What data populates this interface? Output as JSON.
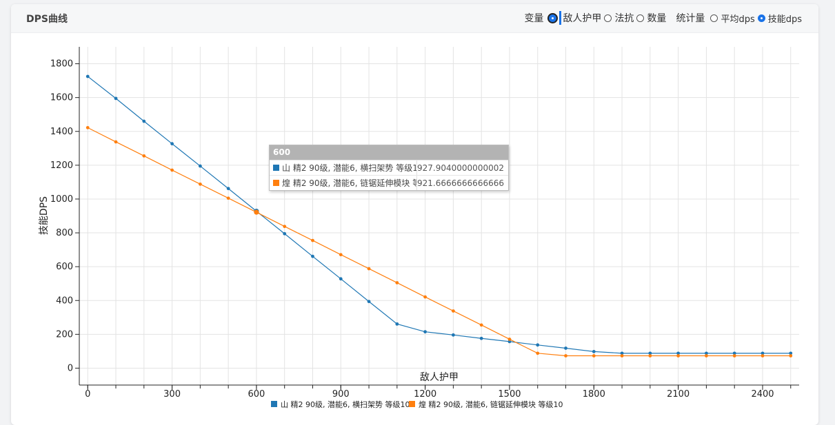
{
  "card": {
    "title": "DPS曲线"
  },
  "controls": {
    "variable_label": "变量",
    "variable_options": [
      "敌人护甲",
      "法抗",
      "数量"
    ],
    "variable_selected": "敌人护甲",
    "stat_label": "统计量",
    "stat_options": [
      "平均dps",
      "技能dps"
    ],
    "stat_selected": "技能dps"
  },
  "tooltip": {
    "title": "600",
    "rows": [
      {
        "name": "山 精2 90级, 潜能6, 横扫架势 等级10",
        "value": "927.9040000000002",
        "color": "#1f77b4"
      },
      {
        "name": "煌 精2 90级, 潜能6, 链锯延伸模块 等级10",
        "value": "921.6666666666666",
        "color": "#ff7f0e"
      }
    ]
  },
  "chart_data": {
    "type": "line",
    "xlabel": "敌人护甲",
    "ylabel": "技能DPS",
    "xlim": [
      -30,
      2530
    ],
    "ylim": [
      -100,
      1900
    ],
    "xticks": [
      0,
      300,
      600,
      900,
      1200,
      1500,
      1800,
      2100,
      2400
    ],
    "yticks": [
      0,
      200,
      400,
      600,
      800,
      1000,
      1200,
      1400,
      1600,
      1800
    ],
    "grid": true,
    "legend": "bottom",
    "x": [
      0,
      100,
      200,
      300,
      400,
      500,
      600,
      700,
      800,
      900,
      1000,
      1100,
      1200,
      1300,
      1400,
      1500,
      1600,
      1700,
      1800,
      1900,
      2000,
      2100,
      2200,
      2300,
      2400,
      2500
    ],
    "series": [
      {
        "name": "山 精2 90级, 潜能6, 横扫架势 等级10",
        "color": "#1f77b4",
        "values": [
          1725,
          1595,
          1460,
          1327,
          1195,
          1062,
          928,
          795,
          661,
          528,
          394,
          261,
          215,
          196,
          176,
          157,
          137,
          118,
          98,
          88,
          88,
          88,
          88,
          88,
          88,
          88
        ]
      },
      {
        "name": "煌 精2 90级, 潜能6, 链锯延伸模块 等级10",
        "color": "#ff7f0e",
        "values": [
          1422,
          1338,
          1255,
          1171,
          1088,
          1005,
          922,
          838,
          755,
          671,
          588,
          505,
          421,
          338,
          255,
          171,
          88,
          73,
          73,
          73,
          73,
          73,
          73,
          73,
          73,
          73
        ]
      }
    ],
    "highlight_x": 600
  }
}
